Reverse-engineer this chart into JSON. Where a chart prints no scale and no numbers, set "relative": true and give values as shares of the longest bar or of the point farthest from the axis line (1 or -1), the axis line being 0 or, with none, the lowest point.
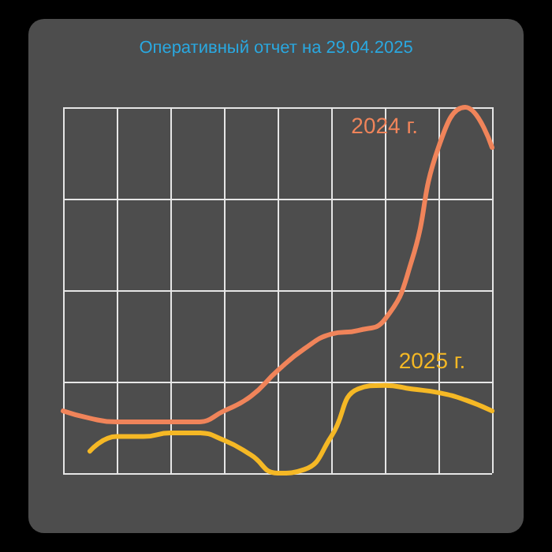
{
  "chart_data": {
    "type": "line",
    "title": "Оперативный отчет на 29.04.2025",
    "relative": true,
    "grid": true,
    "legend": false,
    "marker": "none",
    "line_style": "solid",
    "categories": [
      null,
      null,
      null,
      null,
      null,
      null,
      null,
      null,
      null,
      null,
      null,
      null,
      null,
      null,
      null,
      null,
      null
    ],
    "series": [
      {
        "name": "2024 г.",
        "color": "#f0845a",
        "values": [
          0.17,
          0.15,
          0.14,
          0.14,
          0.14,
          0.14,
          0.17,
          0.21,
          0.28,
          0.34,
          0.38,
          0.39,
          0.42,
          0.58,
          0.89,
          1,
          0.89
        ]
      },
      {
        "name": "2025 г.",
        "color": "#f5b825",
        "values": [
          null,
          0.06,
          0.1,
          0.1,
          0.11,
          0.11,
          0.09,
          0.05,
          0,
          0.01,
          0.1,
          0.23,
          0.24,
          0.23,
          0.22,
          0.2,
          0.17
        ]
      }
    ]
  }
}
